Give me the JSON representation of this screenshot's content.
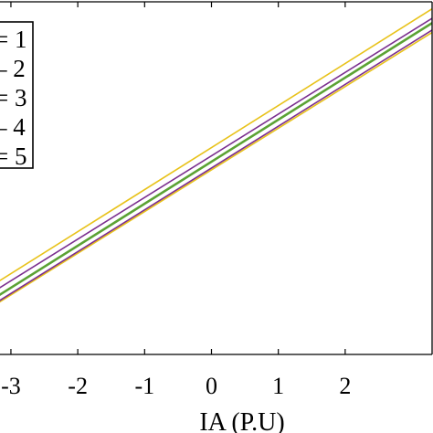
{
  "chart_data": {
    "type": "line",
    "xlabel": "IA (P.U)",
    "x_ticks": [
      -3,
      -2,
      -1,
      0,
      1,
      2
    ],
    "x_tick_labels": [
      "-3",
      "-2",
      "-1",
      "0",
      "1",
      "2"
    ],
    "xlim": [
      -3.3,
      3.3
    ],
    "ylim": [
      -4.45,
      3.05
    ],
    "grid": false,
    "legend_placement": "top-left",
    "legend": [
      "= 1",
      "– 2",
      "= 3",
      "– 4",
      "= 5"
    ],
    "series": [
      {
        "name": "= 1",
        "color": "#e8c21a",
        "x": [
          -3.3,
          3.3
        ],
        "y": [
          -3.0,
          2.9
        ]
      },
      {
        "name": "– 2",
        "color": "#e8c21a",
        "x": [
          -3.3,
          3.3
        ],
        "y": [
          -3.45,
          2.4
        ]
      },
      {
        "name": "= 3",
        "color": "#7b2f8f",
        "x": [
          -3.3,
          3.3
        ],
        "y": [
          -3.15,
          2.7
        ]
      },
      {
        "name": "– 4",
        "color": "#7b2f8f",
        "x": [
          -3.3,
          3.3
        ],
        "y": [
          -3.42,
          2.45
        ]
      },
      {
        "name": "= 5",
        "color": "#5ba234",
        "x": [
          -3.3,
          3.3
        ],
        "y": [
          -3.3,
          2.6
        ]
      }
    ]
  }
}
